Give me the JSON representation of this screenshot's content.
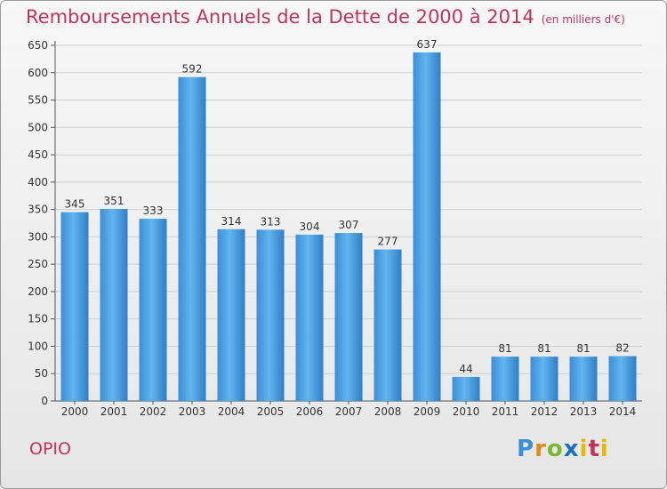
{
  "title": "Remboursements Annuels de la Dette de 2000 à 2014",
  "subtitle": "(en milliers d'€)",
  "town": "OPIO",
  "logo": "Proxiti",
  "colors": {
    "bar_light": "#5fb2ec",
    "bar_dark": "#2f7fc6",
    "title": "#c0335f",
    "grid": "#cfcfcf"
  },
  "chart_data": {
    "type": "bar",
    "title": "Remboursements Annuels de la Dette de 2000 à 2014",
    "subtitle": "(en milliers d'€)",
    "categories": [
      "2000",
      "2001",
      "2002",
      "2003",
      "2004",
      "2005",
      "2006",
      "2007",
      "2008",
      "2009",
      "2010",
      "2011",
      "2012",
      "2013",
      "2014"
    ],
    "values": [
      345,
      351,
      333,
      592,
      314,
      313,
      304,
      307,
      277,
      637,
      44,
      81,
      81,
      81,
      82
    ],
    "ylim": [
      0,
      650
    ],
    "yticks": [
      0,
      50,
      100,
      150,
      200,
      250,
      300,
      350,
      400,
      450,
      500,
      550,
      600,
      650
    ],
    "grid": true,
    "xlabel": "",
    "ylabel": ""
  }
}
